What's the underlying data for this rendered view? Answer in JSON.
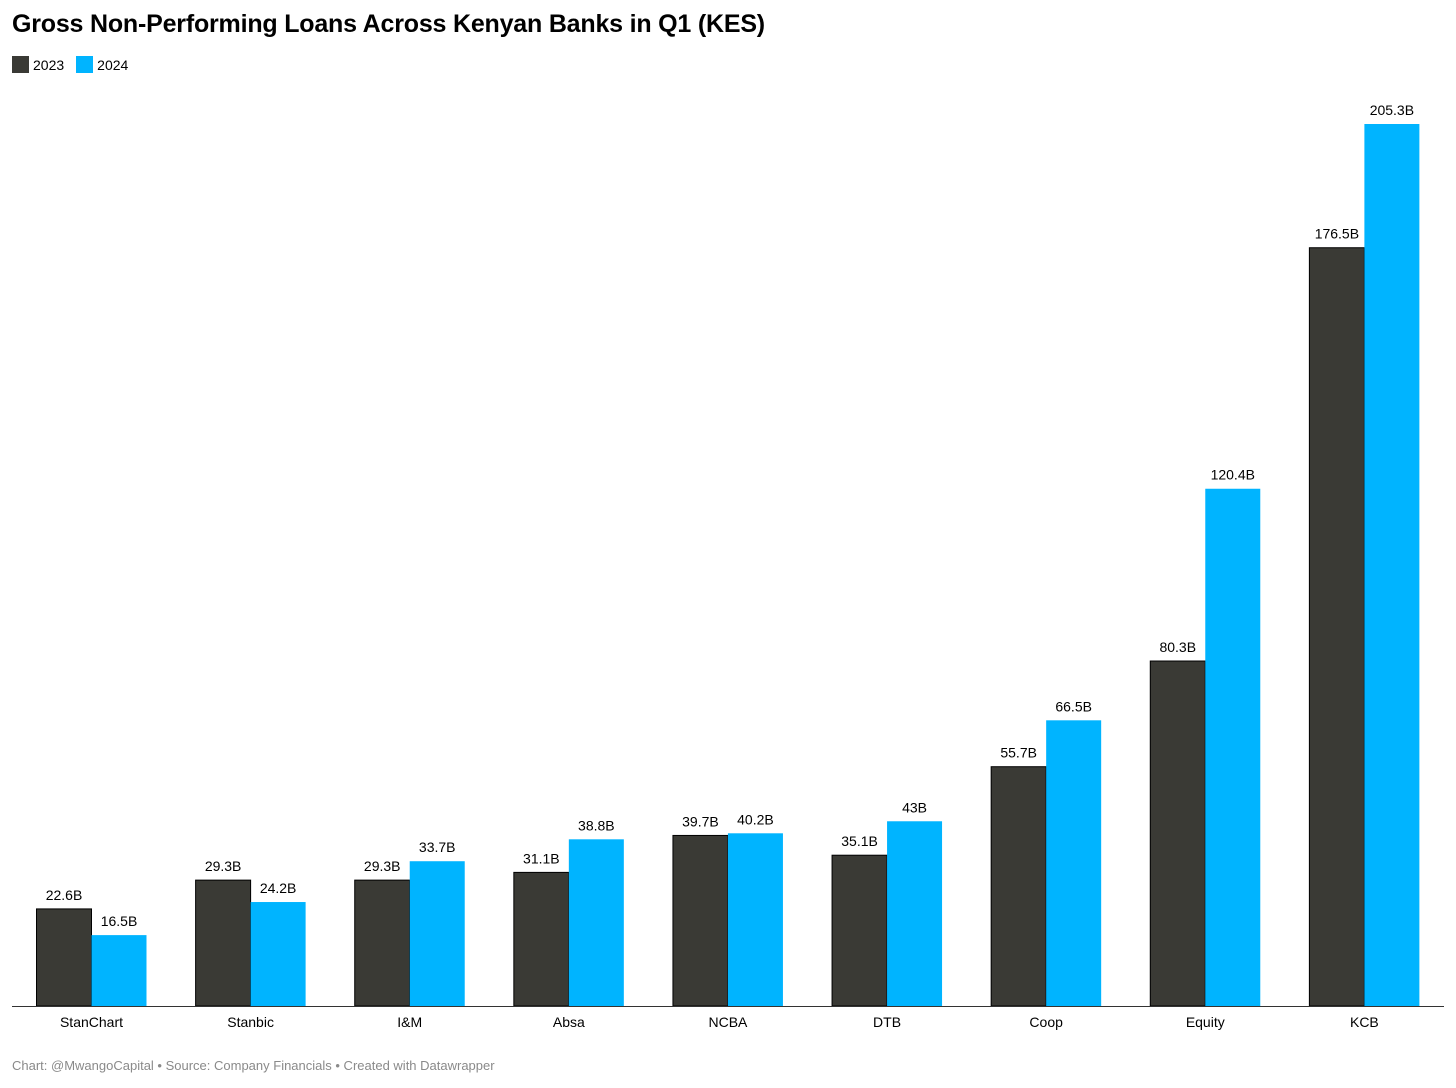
{
  "chart_data": {
    "type": "bar",
    "title": "Gross Non-Performing Loans Across Kenyan Banks in Q1 (KES)",
    "categories": [
      "StanChart",
      "Stanbic",
      "I&M",
      "Absa",
      "NCBA",
      "DTB",
      "Coop",
      "Equity",
      "KCB"
    ],
    "series": [
      {
        "name": "2023",
        "color": "#3a3a35",
        "values": [
          22.6,
          29.3,
          29.3,
          31.1,
          39.7,
          35.1,
          55.7,
          80.3,
          176.5
        ],
        "labels": [
          "22.6B",
          "29.3B",
          "29.3B",
          "31.1B",
          "39.7B",
          "35.1B",
          "55.7B",
          "80.3B",
          "176.5B"
        ]
      },
      {
        "name": "2024",
        "color": "#00b4ff",
        "values": [
          16.5,
          24.2,
          33.7,
          38.8,
          40.2,
          43,
          66.5,
          120.4,
          205.3
        ],
        "labels": [
          "16.5B",
          "24.2B",
          "33.7B",
          "38.8B",
          "40.2B",
          "43B",
          "66.5B",
          "120.4B",
          "205.3B"
        ]
      }
    ],
    "ylim": [
      0,
      205.3
    ],
    "grid": false,
    "legend_position": "top-left"
  },
  "footer": {
    "text": "Chart: @MwangoCapital • Source: Company Financials • Created with Datawrapper"
  }
}
